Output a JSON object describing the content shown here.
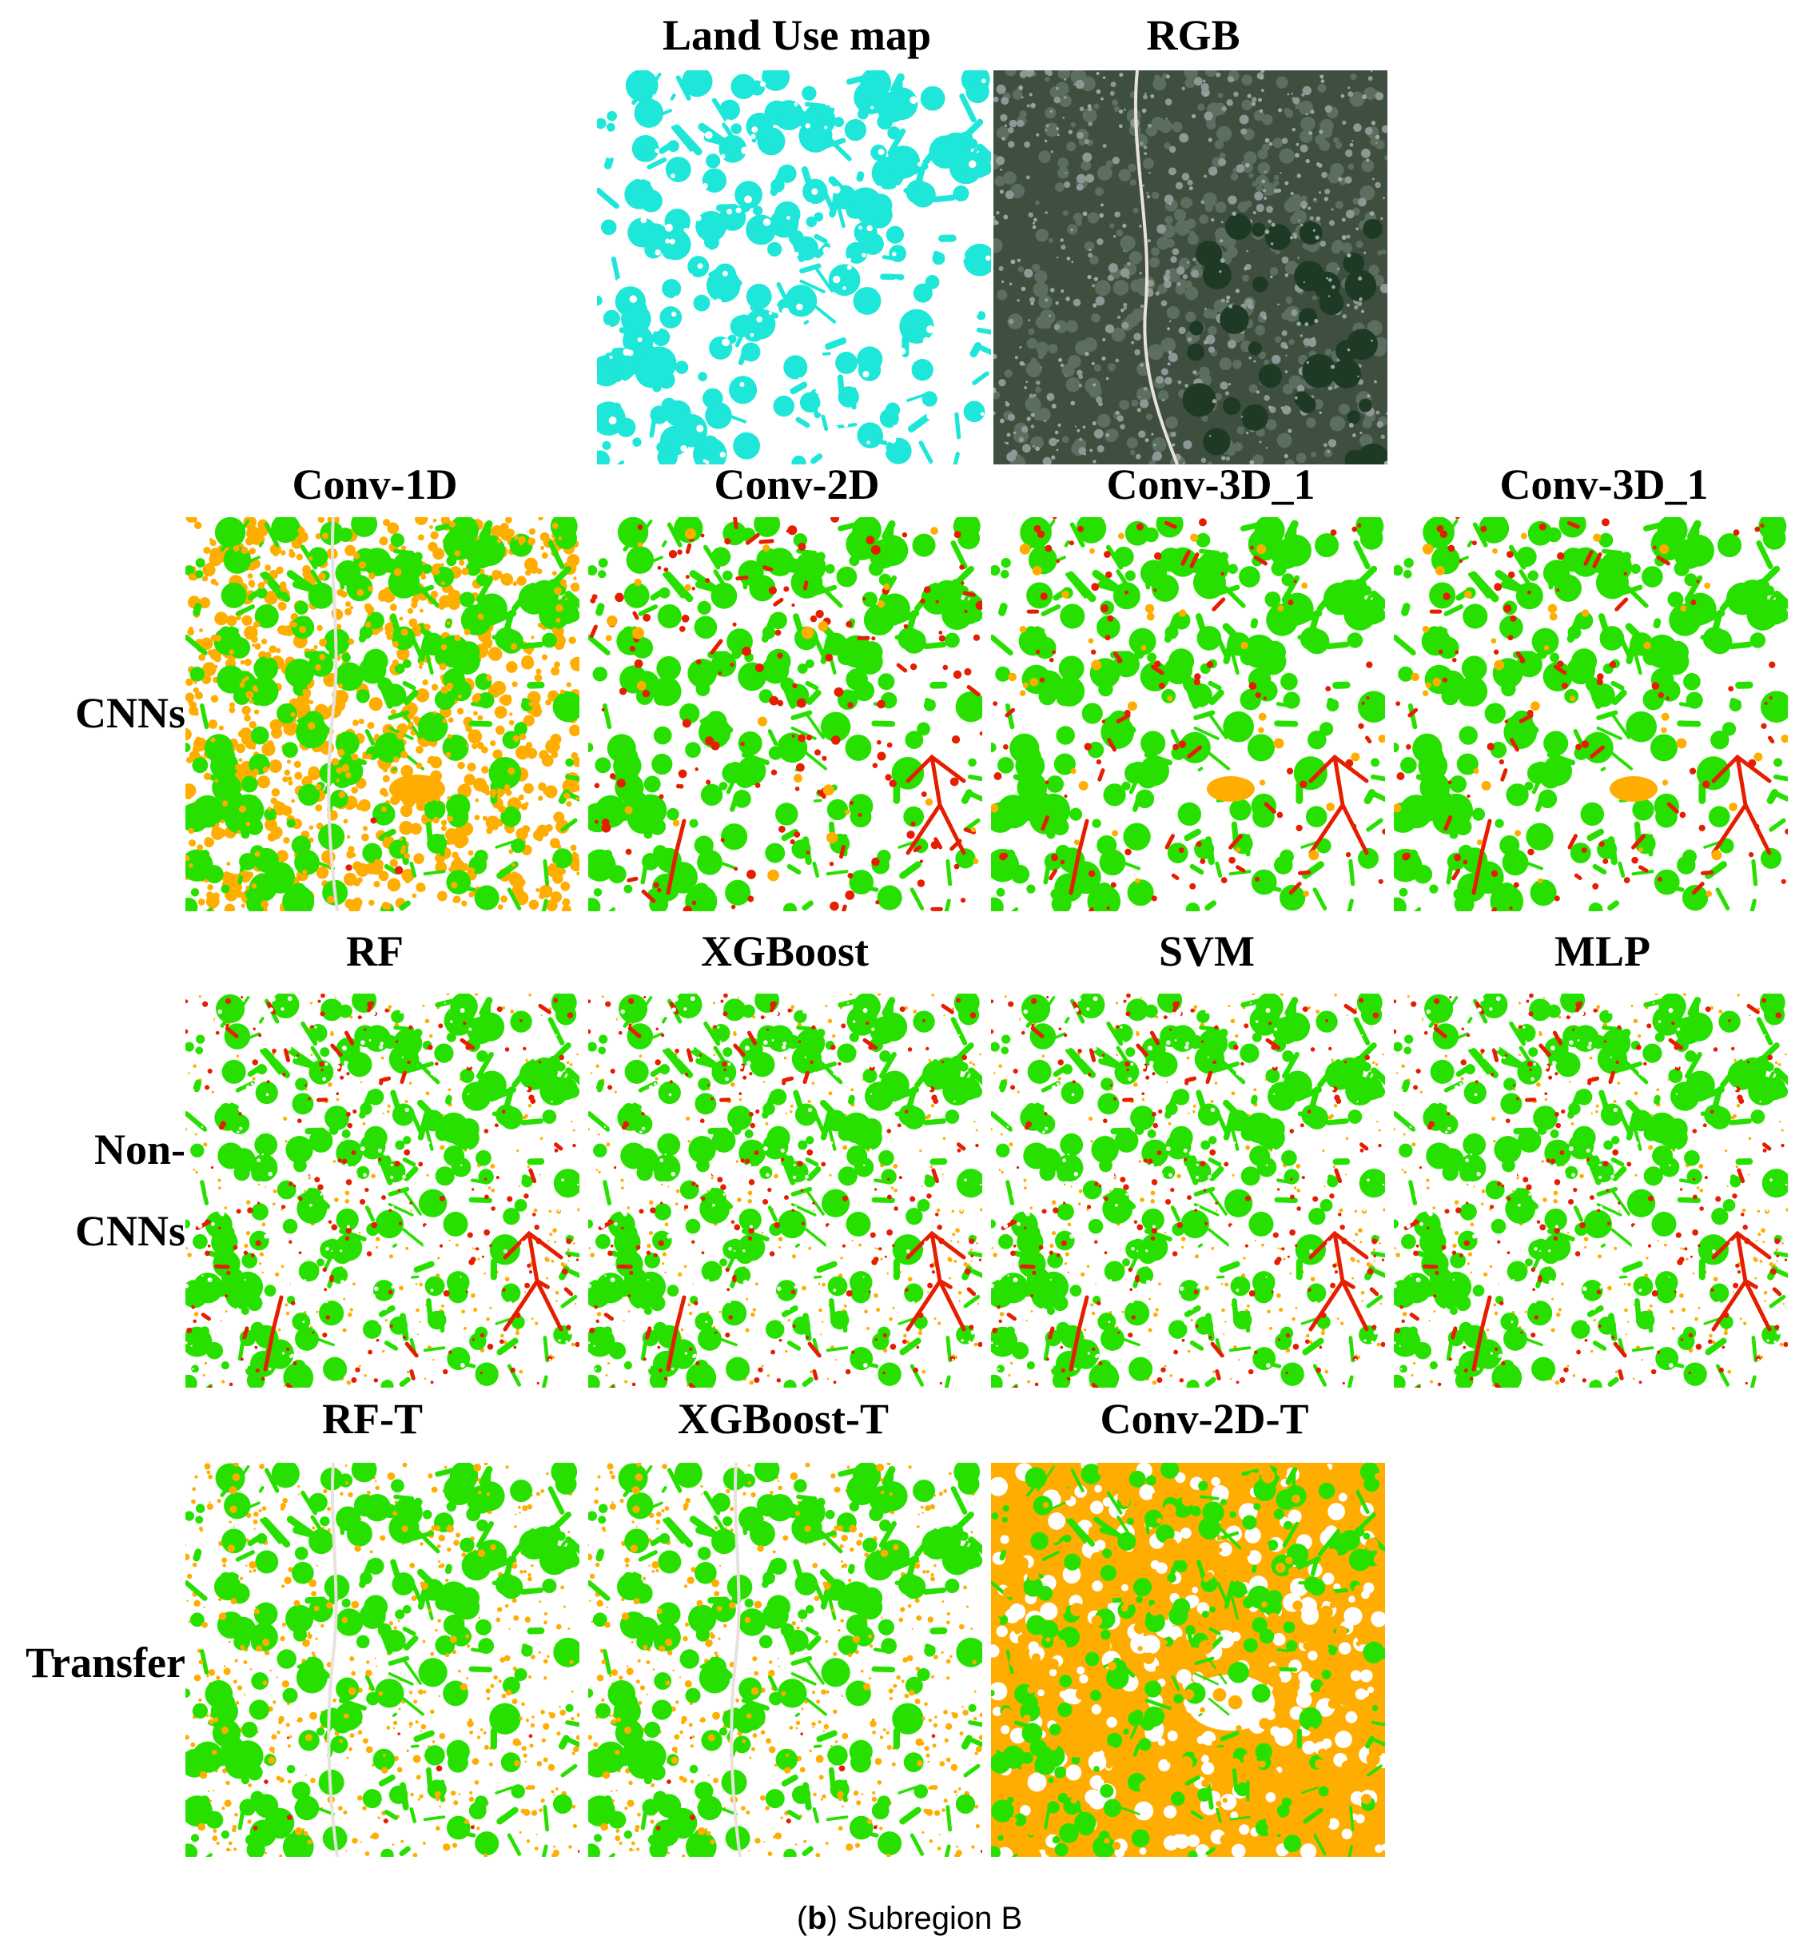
{
  "top_panels": [
    {
      "title": "Land Use map",
      "kind": "landuse"
    },
    {
      "title": "RGB",
      "kind": "rgb"
    }
  ],
  "rows": [
    {
      "label": [
        "CNNs"
      ],
      "panels": [
        {
          "title": "Conv-1D",
          "kind": "conv1d"
        },
        {
          "title": "Conv-2D",
          "kind": "conv2d"
        },
        {
          "title": "Conv-3D_1",
          "kind": "conv3d"
        },
        {
          "title": "Conv-3D_1",
          "kind": "conv3d"
        }
      ]
    },
    {
      "label": [
        "Non-",
        "CNNs"
      ],
      "panels": [
        {
          "title": "RF",
          "kind": "noncnn"
        },
        {
          "title": "XGBoost",
          "kind": "noncnn"
        },
        {
          "title": "SVM",
          "kind": "noncnn"
        },
        {
          "title": "MLP",
          "kind": "noncnn"
        }
      ]
    },
    {
      "label": [
        "Transfer"
      ],
      "panels": [
        {
          "title": "RF-T",
          "kind": "transfer"
        },
        {
          "title": "XGBoost-T",
          "kind": "transfer"
        },
        {
          "title": "Conv-2D-T",
          "kind": "conv2dt"
        }
      ]
    }
  ],
  "caption": {
    "letter": "b",
    "text": "Subregion B"
  },
  "colors": {
    "cyan": "#1ee6d8",
    "green": "#27e000",
    "orange": "#ffad00",
    "red": "#e51e00",
    "white": "#ffffff",
    "rgb_base": "#3f4f3f",
    "rgb_dark": "#1e3a24",
    "rgb_light": "#9aa8a2",
    "road": "#e8e2dc"
  }
}
